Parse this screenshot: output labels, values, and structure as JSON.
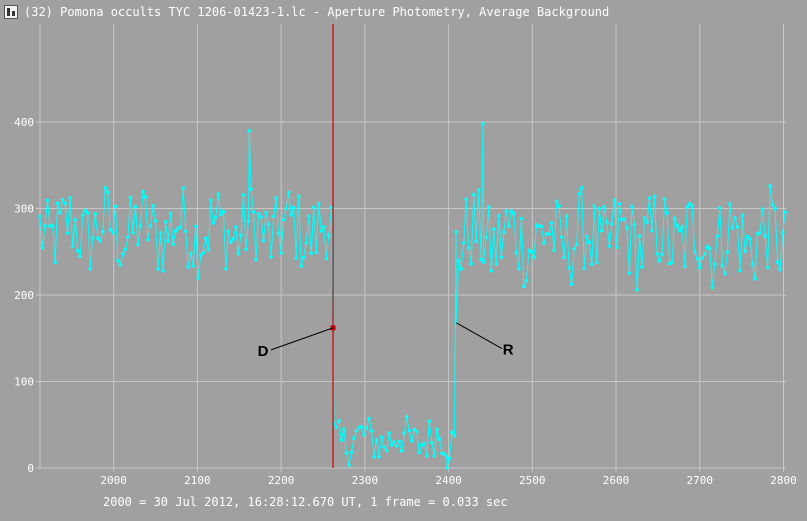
{
  "window": {
    "title": "(32) Pomona occults TYC 1206-01423-1.lc - Aperture Photometry, Average Background"
  },
  "footer": {
    "note": "2000 = 30 Jul 2012, 16:28:12.670 UT, 1 frame = 0.033 sec"
  },
  "colors": {
    "background": "#a0a0a0",
    "grid": "#c8c8c8",
    "series": "#00ffff",
    "event_line": "#cc0000",
    "text": "#ffffff"
  },
  "chart_data": {
    "type": "line",
    "title": "",
    "xlabel": "",
    "ylabel": "",
    "xlim": [
      1912,
      2803
    ],
    "ylim": [
      0,
      400
    ],
    "x_ticks": [
      2000,
      2100,
      2200,
      2300,
      2400,
      2500,
      2600,
      2700,
      2800
    ],
    "y_ticks": [
      0,
      100,
      200,
      300,
      400
    ],
    "grid": true,
    "series": [
      {
        "name": "",
        "x_start": 1912,
        "x_end": 2803,
        "segments": [
          {
            "x_from": 1912,
            "x_to": 2262,
            "mean": 275,
            "amplitude": 45
          },
          {
            "x_from": 2263,
            "x_to": 2408,
            "mean": 33,
            "amplitude": 25
          },
          {
            "x_from": 2409,
            "x_to": 2803,
            "mean": 265,
            "amplitude": 50
          }
        ],
        "notable_points": [
          {
            "x": 2162,
            "y": 390
          },
          {
            "x": 2262,
            "y": 162
          },
          {
            "x": 2409,
            "y": 168
          },
          {
            "x": 2441,
            "y": 398
          },
          {
            "x": 2398,
            "y": 0
          }
        ]
      }
    ],
    "event_line_x": 2262,
    "annotations": [
      {
        "label": "D",
        "x": 2262,
        "y": 162
      },
      {
        "label": "R",
        "x": 2409,
        "y": 168
      }
    ]
  }
}
